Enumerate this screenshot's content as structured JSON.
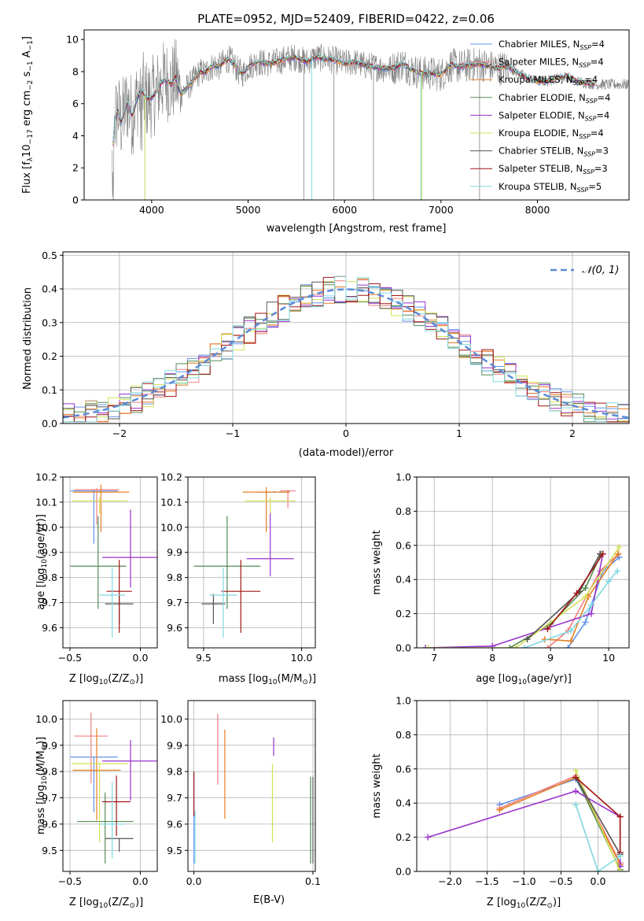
{
  "title": "PLATE=0952, MJD=52409, FIBERID=0422, z=0.06",
  "colors": {
    "spectrum": "#808080",
    "grid": "#b0b0b0",
    "normal_curve": "#5b8bd8",
    "series": [
      "#6495ed",
      "#f08080",
      "#e67e22",
      "#548b54",
      "#9932cc",
      "#d4e157",
      "#555555",
      "#a01414",
      "#80d8e0"
    ]
  },
  "legend": {
    "series": [
      {
        "name": "Chabrier MILES, N",
        "sub": "SSP",
        "tail": "=4"
      },
      {
        "name": "Salpeter MILES, N",
        "sub": "SSP",
        "tail": "=4"
      },
      {
        "name": "Kroupa MILES, N",
        "sub": "SSP",
        "tail": "=4"
      },
      {
        "name": "Chabrier ELODIE, N",
        "sub": "SSP",
        "tail": "=4"
      },
      {
        "name": "Salpeter ELODIE, N",
        "sub": "SSP",
        "tail": "=4"
      },
      {
        "name": "Kroupa ELODIE, N",
        "sub": "SSP",
        "tail": "=4"
      },
      {
        "name": "Chabrier STELIB, N",
        "sub": "SSP",
        "tail": "=3"
      },
      {
        "name": "Salpeter STELIB, N",
        "sub": "SSP",
        "tail": "=3"
      },
      {
        "name": "Kroupa STELIB, N",
        "sub": "SSP",
        "tail": "=5"
      }
    ],
    "normal_label": "𝒩(0, 1)"
  },
  "chart_data": [
    {
      "type": "line",
      "id": "spectrum",
      "xlabel": "wavelength [Angstrom, rest frame]",
      "ylabel_parts": [
        "Flux [f",
        "λ",
        "10",
        "−17",
        " erg cm",
        "−2",
        " s",
        "−1",
        " A",
        "−1",
        "]"
      ],
      "xlim": [
        3300,
        8950
      ],
      "ylim": [
        0,
        10.6
      ],
      "xticks": [
        4000,
        5000,
        6000,
        7000,
        8000
      ],
      "yticks": [
        0,
        2,
        4,
        6,
        8,
        10
      ],
      "data": {
        "x": [
          3600,
          3620,
          3650,
          3680,
          3700,
          3750,
          3800,
          3850,
          3900,
          3950,
          4000,
          4050,
          4100,
          4150,
          4200,
          4250,
          4300,
          4350,
          4400,
          4450,
          4500,
          4550,
          4600,
          4650,
          4700,
          4750,
          4800,
          4850,
          4900,
          4950,
          5000,
          5100,
          5200,
          5300,
          5400,
          5500,
          5600,
          5700,
          5800,
          5900,
          6000,
          6100,
          6200,
          6300,
          6400,
          6500,
          6600,
          6700,
          6800,
          6900,
          7000,
          7100,
          7200,
          7300,
          7400,
          7500,
          7600,
          7700,
          7800,
          7900,
          8000,
          8100,
          8200,
          8300,
          8400,
          8500,
          8600
        ],
        "y": [
          3.5,
          5.0,
          5.6,
          4.8,
          5.2,
          6.1,
          5.2,
          6.4,
          6.8,
          6.3,
          6.4,
          6.7,
          7.3,
          7.5,
          7.2,
          7.6,
          6.6,
          6.9,
          7.2,
          7.6,
          8.0,
          7.9,
          8.2,
          8.4,
          8.3,
          8.6,
          8.8,
          8.5,
          8.0,
          7.9,
          8.3,
          8.6,
          8.5,
          8.6,
          8.8,
          8.9,
          8.6,
          8.9,
          8.8,
          8.7,
          8.5,
          8.6,
          8.4,
          8.3,
          8.2,
          8.2,
          8.5,
          8.1,
          7.9,
          7.9,
          7.8,
          8.4,
          8.3,
          8.4,
          8.5,
          8.3,
          8.2,
          8.3,
          7.9,
          7.6,
          7.4,
          7.4,
          7.6,
          7.7,
          7.4,
          7.3,
          7.2
        ]
      }
    },
    {
      "type": "histogram",
      "id": "residuals",
      "xlabel": "(data-model)/error",
      "ylabel": "Normed distribution",
      "xlim": [
        -2.5,
        2.5
      ],
      "ylim": [
        0,
        0.51
      ],
      "xticks": [
        -2,
        -1,
        0,
        1,
        2
      ],
      "xticklabels": [
        "−2",
        "−1",
        "0",
        "1",
        "2"
      ],
      "yticks": [
        0,
        0.1,
        0.2,
        0.3,
        0.4,
        0.5
      ],
      "yticklabels": [
        "0.0",
        "0.1",
        "0.2",
        "0.3",
        "0.4",
        "0.5"
      ],
      "bin_width": 0.1
    },
    {
      "type": "errorbar",
      "id": "age_vs_Z",
      "xlabel_parts": [
        "Z [log",
        "10",
        "(Z/Z",
        "⊙",
        ")]"
      ],
      "ylabel_parts": [
        "age  [log",
        "10",
        "(age/yr)]"
      ],
      "xlim": [
        -0.55,
        0.12
      ],
      "ylim": [
        9.52,
        10.2
      ],
      "xticks": [
        -0.5,
        0.0
      ],
      "xticklabels": [
        "−0.5",
        "0.0"
      ],
      "yticks": [
        9.6,
        9.7,
        9.8,
        9.9,
        10.0,
        10.1,
        10.2
      ],
      "yticklabels": [
        "9.6",
        "9.7",
        "9.8",
        "9.9",
        "10.0",
        "10.1",
        "10.2"
      ],
      "points": [
        {
          "x": -0.33,
          "y": 10.145,
          "xerr": 0.17,
          "yerr_lo": 0.21,
          "yerr_hi": 0.005
        },
        {
          "x": -0.31,
          "y": 10.15,
          "xerr": 0.16,
          "yerr_lo": 0.14,
          "yerr_hi": 0.005
        },
        {
          "x": -0.28,
          "y": 10.14,
          "xerr": 0.2,
          "yerr_lo": 0.16,
          "yerr_hi": 0.03
        },
        {
          "x": -0.3,
          "y": 9.845,
          "xerr": 0.2,
          "yerr_lo": 0.17,
          "yerr_hi": 0.2
        },
        {
          "x": -0.07,
          "y": 9.88,
          "xerr": 0.2,
          "yerr_lo": 0.12,
          "yerr_hi": 0.19
        },
        {
          "x": -0.29,
          "y": 10.105,
          "xerr": 0.2,
          "yerr_lo": 0.05,
          "yerr_hi": 0.015
        },
        {
          "x": -0.15,
          "y": 9.695,
          "xerr": 0.1,
          "yerr_lo": 0.08,
          "yerr_hi": 0.04
        },
        {
          "x": -0.15,
          "y": 9.745,
          "xerr": 0.09,
          "yerr_lo": 0.165,
          "yerr_hi": 0.125
        },
        {
          "x": -0.2,
          "y": 9.73,
          "xerr": 0.09,
          "yerr_lo": 0.17,
          "yerr_hi": 0.11
        }
      ]
    },
    {
      "type": "errorbar",
      "id": "age_vs_mass",
      "xlabel_parts": [
        "mass [log",
        "10",
        "(M/M",
        "⊙",
        ")]"
      ],
      "ylabel_parts": [],
      "xlim": [
        9.42,
        10.07
      ],
      "ylim": [
        9.52,
        10.2
      ],
      "xticks": [
        9.5,
        10.0
      ],
      "xticklabels": [
        "9.5",
        "10.0"
      ],
      "yticks": [
        9.6,
        9.7,
        9.8,
        9.9,
        10.0,
        10.1,
        10.2
      ],
      "yticklabels": [
        "9.6",
        "9.7",
        "9.8",
        "9.9",
        "10.0",
        "10.1",
        "10.2"
      ],
      "points": [
        {
          "x": 9.86,
          "y": 10.14,
          "xerr": 0.08,
          "yerr_lo": 0.0,
          "yerr_hi": 0.005
        },
        {
          "x": 9.93,
          "y": 10.145,
          "xerr": 0.04,
          "yerr_lo": 0.07,
          "yerr_hi": 0.005
        },
        {
          "x": 9.82,
          "y": 10.14,
          "xerr": 0.12,
          "yerr_lo": 0.16,
          "yerr_hi": 0.02
        },
        {
          "x": 9.62,
          "y": 9.845,
          "xerr": 0.17,
          "yerr_lo": 0.17,
          "yerr_hi": 0.2
        },
        {
          "x": 9.84,
          "y": 9.875,
          "xerr": 0.12,
          "yerr_lo": 0.07,
          "yerr_hi": 0.19
        },
        {
          "x": 9.84,
          "y": 10.105,
          "xerr": 0.13,
          "yerr_lo": 0.05,
          "yerr_hi": 0.015
        },
        {
          "x": 9.55,
          "y": 9.695,
          "xerr": 0.06,
          "yerr_lo": 0.08,
          "yerr_hi": 0.04
        },
        {
          "x": 9.69,
          "y": 9.745,
          "xerr": 0.1,
          "yerr_lo": 0.165,
          "yerr_hi": 0.125
        },
        {
          "x": 9.6,
          "y": 9.73,
          "xerr": 0.07,
          "yerr_lo": 0.17,
          "yerr_hi": 0.11
        }
      ]
    },
    {
      "type": "line",
      "id": "weight_vs_age",
      "xlabel_parts": [
        "age  [log",
        "10",
        "(age/yr)]"
      ],
      "ylabel": "mass weight",
      "xlim": [
        6.7,
        10.35
      ],
      "ylim": [
        0,
        1.0
      ],
      "xticks": [
        7,
        8,
        9,
        10
      ],
      "xticklabels": [
        "7",
        "8",
        "9",
        "10"
      ],
      "yticks": [
        0,
        0.2,
        0.4,
        0.6,
        0.8,
        1.0
      ],
      "yticklabels": [
        "0.0",
        "0.2",
        "0.4",
        "0.6",
        "0.8",
        "1.0"
      ],
      "series": [
        {
          "x": [
            9.3,
            9.6,
            9.9,
            10.18
          ],
          "y": [
            0.0,
            0.15,
            0.45,
            0.53
          ]
        },
        {
          "x": [
            8.95,
            9.3,
            9.85,
            10.17
          ],
          "y": [
            0.0,
            0.1,
            0.45,
            0.55
          ]
        },
        {
          "x": [
            8.9,
            9.35,
            9.65,
            10.16
          ],
          "y": [
            0.05,
            0.04,
            0.3,
            0.55
          ]
        },
        {
          "x": [
            8.3,
            9.0,
            9.6,
            9.87
          ],
          "y": [
            0.0,
            0.14,
            0.35,
            0.55
          ]
        },
        {
          "x": [
            6.85,
            8.0,
            9.7,
            9.9
          ],
          "y": [
            0.0,
            0.01,
            0.2,
            0.55
          ]
        },
        {
          "x": [
            6.9,
            8.4,
            9.6,
            10.18
          ],
          "y": [
            0.0,
            0.0,
            0.3,
            0.59
          ]
        },
        {
          "x": [
            8.6,
            9.5,
            9.85
          ],
          "y": [
            0.05,
            0.33,
            0.55
          ]
        },
        {
          "x": [
            8.95,
            9.45,
            9.9
          ],
          "y": [
            0.11,
            0.32,
            0.55
          ]
        },
        {
          "x": [
            8.55,
            9.35,
            9.7,
            10.0,
            10.15
          ],
          "y": [
            0.0,
            0.1,
            0.25,
            0.39,
            0.45
          ]
        }
      ]
    },
    {
      "type": "errorbar",
      "id": "mass_vs_Z",
      "xlabel_parts": [
        "Z [log",
        "10",
        "(Z/Z",
        "⊙",
        ")]"
      ],
      "ylabel_parts": [
        "mass [log",
        "10",
        "(M/M",
        "⊙",
        ")]"
      ],
      "xlim": [
        -0.55,
        0.12
      ],
      "ylim": [
        9.42,
        10.07
      ],
      "xticks": [
        -0.5,
        0.0
      ],
      "xticklabels": [
        "−0.5",
        "0.0"
      ],
      "yticks": [
        9.5,
        9.6,
        9.7,
        9.8,
        9.9,
        10.0
      ],
      "yticklabels": [
        "9.5",
        "9.6",
        "9.7",
        "9.8",
        "9.9",
        "10.0"
      ],
      "points": [
        {
          "x": -0.33,
          "y": 9.855,
          "xerr": 0.17,
          "yerr_lo": 0.21,
          "yerr_hi": 0.0
        },
        {
          "x": -0.35,
          "y": 9.935,
          "xerr": 0.12,
          "yerr_lo": 0.18,
          "yerr_hi": 0.09
        },
        {
          "x": -0.31,
          "y": 9.805,
          "xerr": 0.17,
          "yerr_lo": 0.19,
          "yerr_hi": 0.16
        },
        {
          "x": -0.25,
          "y": 9.61,
          "xerr": 0.2,
          "yerr_lo": 0.16,
          "yerr_hi": 0.11
        },
        {
          "x": -0.07,
          "y": 9.84,
          "xerr": 0.2,
          "yerr_lo": 0.15,
          "yerr_hi": 0.08
        },
        {
          "x": -0.29,
          "y": 9.83,
          "xerr": 0.2,
          "yerr_lo": 0.3,
          "yerr_hi": 0.0
        },
        {
          "x": -0.15,
          "y": 9.545,
          "xerr": 0.1,
          "yerr_lo": 0.05,
          "yerr_hi": 0.0
        },
        {
          "x": -0.17,
          "y": 9.685,
          "xerr": 0.1,
          "yerr_lo": 0.13,
          "yerr_hi": 0.1
        },
        {
          "x": -0.2,
          "y": 9.6,
          "xerr": 0.09,
          "yerr_lo": 0.13,
          "yerr_hi": 0.16
        }
      ]
    },
    {
      "type": "errorbar",
      "id": "mass_vs_EBV",
      "xlabel_parts": [
        "E(B-V)"
      ],
      "ylabel_parts": [],
      "xlim": [
        -0.005,
        0.102
      ],
      "ylim": [
        9.42,
        10.07
      ],
      "xticks": [
        0.0,
        0.1
      ],
      "xticklabels": [
        "0.0",
        "0.1"
      ],
      "yticks": [
        9.5,
        9.6,
        9.7,
        9.8,
        9.9,
        10.0
      ],
      "yticklabels": [
        "9.5",
        "9.6",
        "9.7",
        "9.8",
        "9.9",
        "10.0"
      ],
      "points": [
        {
          "x": 0.0,
          "y": 9.6,
          "xerr": 0,
          "yerr_lo": 0.15,
          "yerr_hi": 0.2
        },
        {
          "x": 0.02,
          "y": 9.9,
          "xerr": 0,
          "yerr_lo": 0.15,
          "yerr_hi": 0.12
        },
        {
          "x": 0.026,
          "y": 9.8,
          "xerr": 0,
          "yerr_lo": 0.18,
          "yerr_hi": 0.16
        },
        {
          "x": 0.098,
          "y": 9.62,
          "xerr": 0,
          "yerr_lo": 0.17,
          "yerr_hi": 0.16
        },
        {
          "x": 0.067,
          "y": 9.9,
          "xerr": 0,
          "yerr_lo": 0.04,
          "yerr_hi": 0.03
        },
        {
          "x": 0.066,
          "y": 9.75,
          "xerr": 0,
          "yerr_lo": 0.22,
          "yerr_hi": 0.08
        },
        {
          "x": 0.1,
          "y": 9.62,
          "xerr": 0,
          "yerr_lo": 0.17,
          "yerr_hi": 0.16
        },
        {
          "x": 0.0,
          "y": 9.72,
          "xerr": 0,
          "yerr_lo": 0.09,
          "yerr_hi": 0.08
        },
        {
          "x": 0.001,
          "y": 9.55,
          "xerr": 0,
          "yerr_lo": 0.1,
          "yerr_hi": 0.1
        }
      ]
    },
    {
      "type": "line",
      "id": "weight_vs_Z",
      "xlabel_parts": [
        "Z [log",
        "10",
        "(Z/Z",
        "⊙",
        ")]"
      ],
      "ylabel": "mass weight",
      "xlim": [
        -2.45,
        0.42
      ],
      "ylim": [
        0,
        1.0
      ],
      "xticks": [
        -2.0,
        -1.5,
        -1.0,
        -0.5,
        0.0
      ],
      "xticklabels": [
        "−2.0",
        "−1.5",
        "−1.0",
        "−0.5",
        "0.0"
      ],
      "yticks": [
        0,
        0.2,
        0.4,
        0.6,
        0.8,
        1.0
      ],
      "yticklabels": [
        "0.0",
        "0.2",
        "0.4",
        "0.6",
        "0.8",
        "1.0"
      ],
      "series": [
        {
          "x": [
            -1.33,
            -0.3,
            0.3,
            0.3
          ],
          "y": [
            0.39,
            0.54,
            0.05,
            0.03
          ]
        },
        {
          "x": [
            -1.33,
            -0.3,
            0.3
          ],
          "y": [
            0.37,
            0.56,
            0.05
          ]
        },
        {
          "x": [
            -1.33,
            -0.3,
            0.3
          ],
          "y": [
            0.36,
            0.55,
            0.04
          ]
        },
        {
          "x": [
            -0.3,
            0.3
          ],
          "y": [
            0.55,
            0.01
          ]
        },
        {
          "x": [
            -2.3,
            -0.3,
            0.3,
            0.3
          ],
          "y": [
            0.2,
            0.47,
            0.32,
            0.03
          ]
        },
        {
          "x": [
            -0.3,
            0.3
          ],
          "y": [
            0.59,
            0.0
          ]
        },
        {
          "x": [
            -0.3,
            0.3
          ],
          "y": [
            0.55,
            0.1
          ]
        },
        {
          "x": [
            -0.3,
            0.3,
            0.3
          ],
          "y": [
            0.55,
            0.32,
            0.11
          ]
        },
        {
          "x": [
            -0.3,
            0.0,
            0.3
          ],
          "y": [
            0.39,
            0.0,
            0.09
          ]
        }
      ]
    }
  ]
}
